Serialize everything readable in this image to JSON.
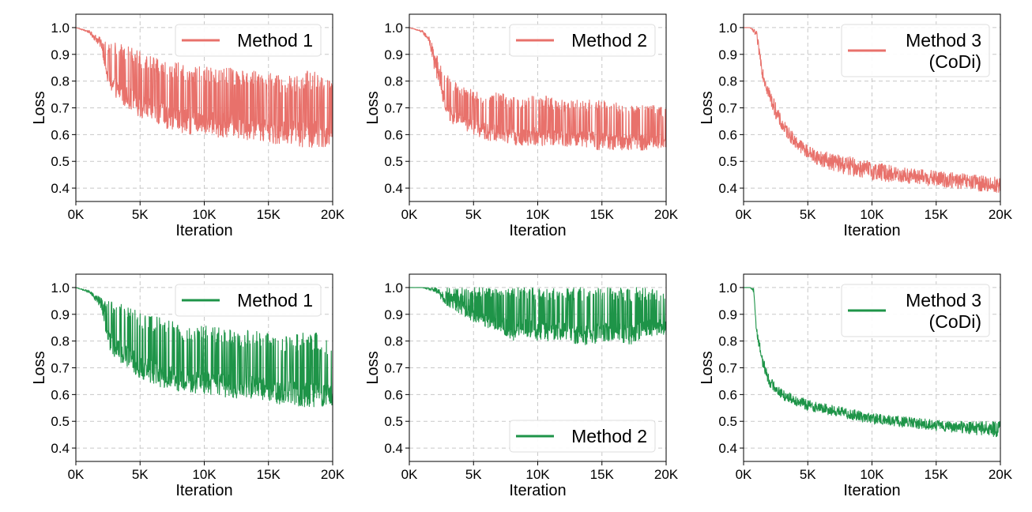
{
  "colors": {
    "red": "#e8716b",
    "green": "#1e9448"
  },
  "chart_data": [
    {
      "type": "line",
      "xlabel": "Iteration",
      "ylabel": "Loss",
      "xlim": [
        0,
        20000
      ],
      "ylim": [
        0.35,
        1.05
      ],
      "xticks": [
        0,
        5000,
        10000,
        15000,
        20000
      ],
      "xtick_labels": [
        "0K",
        "5K",
        "10K",
        "15K",
        "20K"
      ],
      "yticks": [
        0.4,
        0.5,
        0.6,
        0.7,
        0.8,
        0.9,
        1.0
      ],
      "ytick_labels": [
        "0.4",
        "0.5",
        "0.6",
        "0.7",
        "0.8",
        "0.9",
        "1.0"
      ],
      "grid": true,
      "legend": "upper-right",
      "series": [
        {
          "name": "Method 1",
          "color": "red",
          "x": [
            0,
            1000,
            2000,
            2500,
            3000,
            4000,
            5000,
            6000,
            7000,
            8000,
            9000,
            10000,
            11000,
            12000,
            13000,
            14000,
            15000,
            16000,
            17000,
            18000,
            19000,
            20000
          ],
          "low": [
            1.0,
            0.98,
            0.92,
            0.78,
            0.74,
            0.7,
            0.66,
            0.64,
            0.62,
            0.61,
            0.6,
            0.6,
            0.59,
            0.59,
            0.58,
            0.58,
            0.57,
            0.56,
            0.56,
            0.55,
            0.55,
            0.56
          ],
          "high": [
            1.0,
            0.99,
            0.96,
            0.95,
            0.95,
            0.93,
            0.91,
            0.9,
            0.88,
            0.87,
            0.86,
            0.86,
            0.85,
            0.85,
            0.84,
            0.84,
            0.83,
            0.82,
            0.82,
            0.84,
            0.83,
            0.8
          ]
        }
      ]
    },
    {
      "type": "line",
      "xlabel": "Iteration",
      "ylabel": "Loss",
      "xlim": [
        0,
        20000
      ],
      "ylim": [
        0.35,
        1.05
      ],
      "xticks": [
        0,
        5000,
        10000,
        15000,
        20000
      ],
      "xtick_labels": [
        "0K",
        "5K",
        "10K",
        "15K",
        "20K"
      ],
      "yticks": [
        0.4,
        0.5,
        0.6,
        0.7,
        0.8,
        0.9,
        1.0
      ],
      "ytick_labels": [
        "0.4",
        "0.5",
        "0.6",
        "0.7",
        "0.8",
        "0.9",
        "1.0"
      ],
      "grid": true,
      "legend": "upper-right",
      "series": [
        {
          "name": "Method 2",
          "color": "red",
          "x": [
            0,
            1000,
            1500,
            2000,
            2500,
            3000,
            3500,
            4000,
            5000,
            6000,
            7000,
            8000,
            9000,
            10000,
            11000,
            12000,
            13000,
            14000,
            15000,
            16000,
            17000,
            18000,
            19000,
            20000
          ],
          "low": [
            1.0,
            0.98,
            0.95,
            0.82,
            0.74,
            0.66,
            0.63,
            0.62,
            0.6,
            0.58,
            0.57,
            0.56,
            0.56,
            0.56,
            0.55,
            0.55,
            0.55,
            0.55,
            0.54,
            0.54,
            0.54,
            0.54,
            0.54,
            0.55
          ],
          "high": [
            1.0,
            0.99,
            0.97,
            0.92,
            0.86,
            0.84,
            0.8,
            0.78,
            0.77,
            0.75,
            0.76,
            0.74,
            0.73,
            0.76,
            0.74,
            0.73,
            0.73,
            0.73,
            0.73,
            0.72,
            0.71,
            0.71,
            0.71,
            0.7
          ]
        }
      ]
    },
    {
      "type": "line",
      "xlabel": "Iteration",
      "ylabel": "Loss",
      "xlim": [
        0,
        20000
      ],
      "ylim": [
        0.35,
        1.05
      ],
      "xticks": [
        0,
        5000,
        10000,
        15000,
        20000
      ],
      "xtick_labels": [
        "0K",
        "5K",
        "10K",
        "15K",
        "20K"
      ],
      "yticks": [
        0.4,
        0.5,
        0.6,
        0.7,
        0.8,
        0.9,
        1.0
      ],
      "ytick_labels": [
        "0.4",
        "0.5",
        "0.6",
        "0.7",
        "0.8",
        "0.9",
        "1.0"
      ],
      "grid": true,
      "legend": "upper-right",
      "series": [
        {
          "name": "Method 3 (CoDi)",
          "color": "red",
          "x": [
            0,
            500,
            1000,
            1500,
            2000,
            2500,
            3000,
            4000,
            5000,
            6000,
            8000,
            10000,
            12000,
            14000,
            16000,
            18000,
            20000
          ],
          "low": [
            1.0,
            1.0,
            0.96,
            0.8,
            0.72,
            0.66,
            0.61,
            0.55,
            0.51,
            0.48,
            0.45,
            0.43,
            0.42,
            0.41,
            0.4,
            0.39,
            0.38
          ],
          "high": [
            1.0,
            1.0,
            0.99,
            0.86,
            0.78,
            0.72,
            0.66,
            0.6,
            0.56,
            0.54,
            0.52,
            0.5,
            0.48,
            0.47,
            0.46,
            0.45,
            0.44
          ]
        }
      ]
    },
    {
      "type": "line",
      "xlabel": "Iteration",
      "ylabel": "Loss",
      "xlim": [
        0,
        20000
      ],
      "ylim": [
        0.35,
        1.05
      ],
      "xticks": [
        0,
        5000,
        10000,
        15000,
        20000
      ],
      "xtick_labels": [
        "0K",
        "5K",
        "10K",
        "15K",
        "20K"
      ],
      "yticks": [
        0.4,
        0.5,
        0.6,
        0.7,
        0.8,
        0.9,
        1.0
      ],
      "ytick_labels": [
        "0.4",
        "0.5",
        "0.6",
        "0.7",
        "0.8",
        "0.9",
        "1.0"
      ],
      "grid": true,
      "legend": "upper-right",
      "series": [
        {
          "name": "Method 1",
          "color": "green",
          "x": [
            0,
            1000,
            2000,
            2500,
            3000,
            4000,
            5000,
            6000,
            7000,
            8000,
            9000,
            10000,
            11000,
            12000,
            13000,
            14000,
            15000,
            16000,
            17000,
            18000,
            19000,
            20000
          ],
          "low": [
            1.0,
            0.98,
            0.92,
            0.78,
            0.74,
            0.7,
            0.66,
            0.64,
            0.62,
            0.61,
            0.6,
            0.6,
            0.59,
            0.59,
            0.58,
            0.58,
            0.57,
            0.56,
            0.56,
            0.55,
            0.55,
            0.56
          ],
          "high": [
            1.0,
            0.99,
            0.96,
            0.95,
            0.95,
            0.93,
            0.91,
            0.9,
            0.88,
            0.87,
            0.86,
            0.86,
            0.85,
            0.85,
            0.84,
            0.84,
            0.83,
            0.82,
            0.82,
            0.84,
            0.83,
            0.8
          ]
        }
      ]
    },
    {
      "type": "line",
      "xlabel": "Iteration",
      "ylabel": "Loss",
      "xlim": [
        0,
        20000
      ],
      "ylim": [
        0.35,
        1.05
      ],
      "xticks": [
        0,
        5000,
        10000,
        15000,
        20000
      ],
      "xtick_labels": [
        "0K",
        "5K",
        "10K",
        "15K",
        "20K"
      ],
      "yticks": [
        0.4,
        0.5,
        0.6,
        0.7,
        0.8,
        0.9,
        1.0
      ],
      "ytick_labels": [
        "0.4",
        "0.5",
        "0.6",
        "0.7",
        "0.8",
        "0.9",
        "1.0"
      ],
      "grid": true,
      "legend": "lower-right",
      "series": [
        {
          "name": "Method 2",
          "color": "green",
          "x": [
            0,
            1000,
            2000,
            3000,
            4000,
            5000,
            6000,
            7000,
            8000,
            9000,
            10000,
            11000,
            12000,
            13000,
            14000,
            15000,
            16000,
            17000,
            18000,
            19000,
            20000
          ],
          "low": [
            1.0,
            1.0,
            0.98,
            0.92,
            0.9,
            0.87,
            0.85,
            0.84,
            0.8,
            0.82,
            0.8,
            0.8,
            0.8,
            0.78,
            0.78,
            0.8,
            0.8,
            0.78,
            0.8,
            0.82,
            0.82
          ],
          "high": [
            1.0,
            1.0,
            1.0,
            1.0,
            1.0,
            1.0,
            1.0,
            1.0,
            1.0,
            1.0,
            1.0,
            1.0,
            1.0,
            1.0,
            1.0,
            1.0,
            1.0,
            1.0,
            1.0,
            1.0,
            0.98
          ]
        }
      ]
    },
    {
      "type": "line",
      "xlabel": "Iteration",
      "ylabel": "Loss",
      "xlim": [
        0,
        20000
      ],
      "ylim": [
        0.35,
        1.05
      ],
      "xticks": [
        0,
        5000,
        10000,
        15000,
        20000
      ],
      "xtick_labels": [
        "0K",
        "5K",
        "10K",
        "15K",
        "20K"
      ],
      "yticks": [
        0.4,
        0.5,
        0.6,
        0.7,
        0.8,
        0.9,
        1.0
      ],
      "ytick_labels": [
        "0.4",
        "0.5",
        "0.6",
        "0.7",
        "0.8",
        "0.9",
        "1.0"
      ],
      "grid": true,
      "legend": "upper-right",
      "series": [
        {
          "name": "Method 3 (CoDi)",
          "color": "green",
          "x": [
            0,
            500,
            800,
            1000,
            1500,
            2000,
            3000,
            4000,
            5000,
            6000,
            8000,
            10000,
            12000,
            14000,
            16000,
            18000,
            20000
          ],
          "low": [
            1.0,
            1.0,
            0.98,
            0.82,
            0.7,
            0.63,
            0.58,
            0.56,
            0.54,
            0.53,
            0.51,
            0.49,
            0.48,
            0.47,
            0.46,
            0.45,
            0.44
          ],
          "high": [
            1.0,
            1.0,
            1.0,
            0.86,
            0.74,
            0.67,
            0.62,
            0.6,
            0.58,
            0.57,
            0.55,
            0.53,
            0.52,
            0.51,
            0.5,
            0.5,
            0.5
          ]
        }
      ]
    }
  ]
}
